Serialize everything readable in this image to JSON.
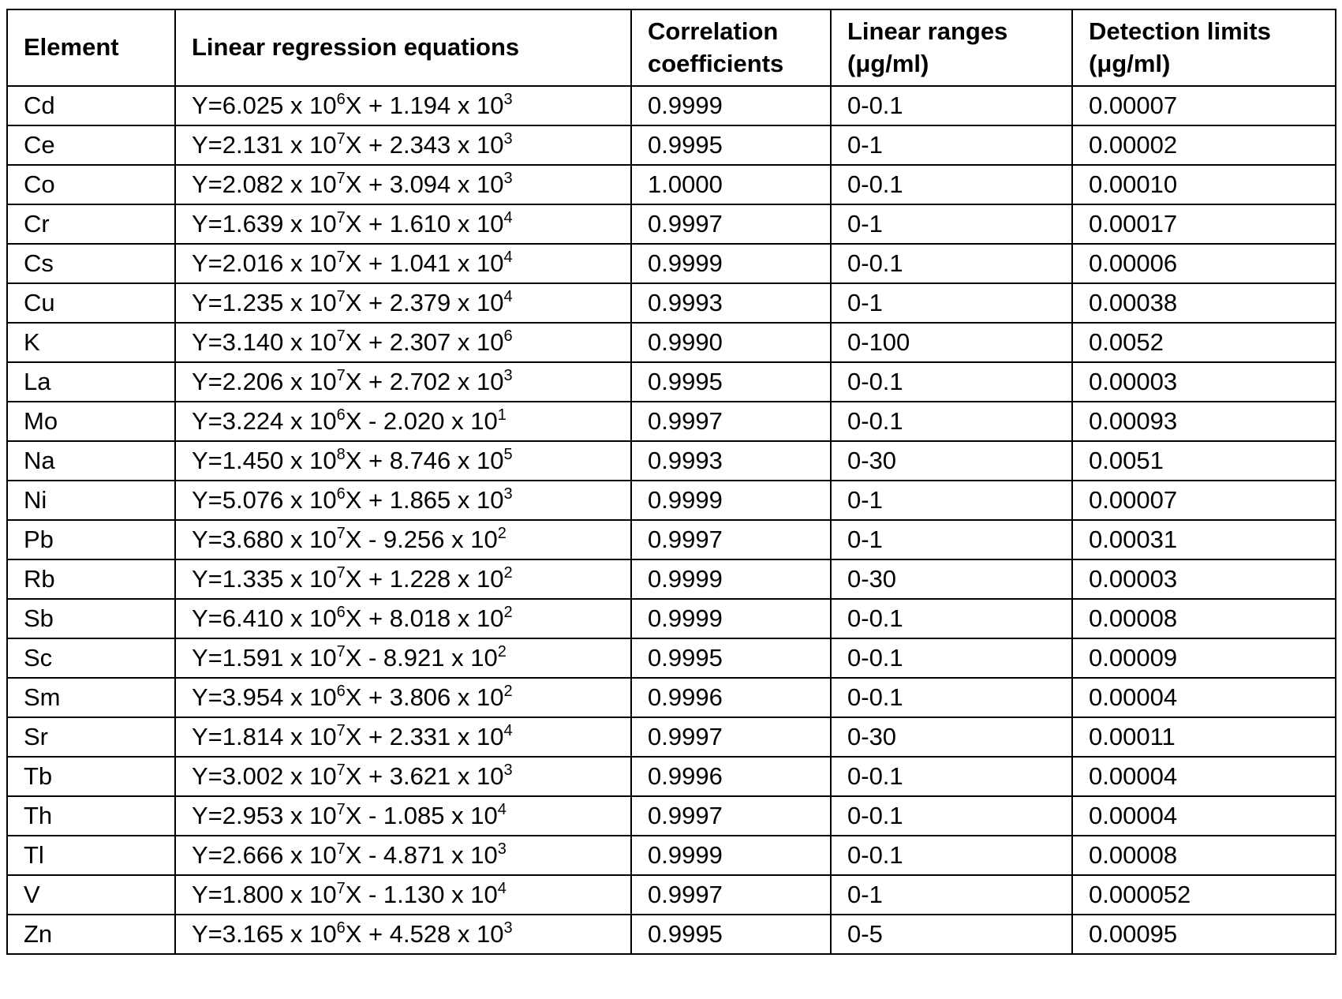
{
  "table": {
    "header": [
      "Element",
      "Linear regression equations",
      "Correlation coefficients",
      "Linear ranges (μg/ml)",
      "Detection limits (μg/ml)"
    ],
    "rows": [
      [
        "Cd",
        [
          "Y=6.025 x 10",
          "6",
          "X + 1.194 x 10",
          "3"
        ],
        "0.9999",
        "0-0.1",
        "0.00007"
      ],
      [
        "Ce",
        [
          "Y=2.131 x 10",
          "7",
          "X + 2.343 x 10",
          "3"
        ],
        "0.9995",
        "0-1",
        "0.00002"
      ],
      [
        "Co",
        [
          "Y=2.082 x 10",
          "7",
          "X + 3.094 x 10",
          "3"
        ],
        "1.0000",
        "0-0.1",
        "0.00010"
      ],
      [
        "Cr",
        [
          "Y=1.639 x 10",
          "7",
          "X + 1.610 x 10",
          "4"
        ],
        "0.9997",
        "0-1",
        "0.00017"
      ],
      [
        "Cs",
        [
          "Y=2.016 x 10",
          "7",
          "X + 1.041 x 10",
          "4"
        ],
        "0.9999",
        "0-0.1",
        "0.00006"
      ],
      [
        "Cu",
        [
          "Y=1.235 x 10",
          "7",
          "X + 2.379 x 10",
          "4"
        ],
        "0.9993",
        "0-1",
        "0.00038"
      ],
      [
        "K",
        [
          "Y=3.140 x 10",
          "7",
          "X + 2.307 x 10",
          "6"
        ],
        "0.9990",
        "0-100",
        "0.0052"
      ],
      [
        "La",
        [
          "Y=2.206 x 10",
          "7",
          "X + 2.702 x 10",
          "3"
        ],
        "0.9995",
        "0-0.1",
        "0.00003"
      ],
      [
        "Mo",
        [
          "Y=3.224 x 10",
          "6",
          "X - 2.020 x 10",
          "1"
        ],
        "0.9997",
        "0-0.1",
        "0.00093"
      ],
      [
        "Na",
        [
          "Y=1.450 x 10",
          "8",
          "X + 8.746 x 10",
          "5"
        ],
        "0.9993",
        "0-30",
        "0.0051"
      ],
      [
        "Ni",
        [
          "Y=5.076 x 10",
          "6",
          "X + 1.865 x 10",
          "3"
        ],
        "0.9999",
        "0-1",
        "0.00007"
      ],
      [
        "Pb",
        [
          "Y=3.680 x 10",
          "7",
          "X - 9.256 x 10",
          "2"
        ],
        "0.9997",
        "0-1",
        "0.00031"
      ],
      [
        "Rb",
        [
          "Y=1.335 x 10",
          "7",
          "X + 1.228 x 10",
          "2"
        ],
        "0.9999",
        "0-30",
        "0.00003"
      ],
      [
        "Sb",
        [
          "Y=6.410 x 10",
          "6",
          "X + 8.018 x 10",
          "2"
        ],
        "0.9999",
        "0-0.1",
        "0.00008"
      ],
      [
        "Sc",
        [
          "Y=1.591 x 10",
          "7",
          "X - 8.921 x 10",
          "2"
        ],
        "0.9995",
        "0-0.1",
        "0.00009"
      ],
      [
        "Sm",
        [
          "Y=3.954 x 10",
          "6",
          "X + 3.806 x 10",
          "2"
        ],
        "0.9996",
        "0-0.1",
        "0.00004"
      ],
      [
        "Sr",
        [
          "Y=1.814 x 10",
          "7",
          "X + 2.331 x 10",
          "4"
        ],
        "0.9997",
        "0-30",
        "0.00011"
      ],
      [
        "Tb",
        [
          "Y=3.002 x 10",
          "7",
          "X + 3.621 x 10",
          "3"
        ],
        "0.9996",
        "0-0.1",
        "0.00004"
      ],
      [
        "Th",
        [
          "Y=2.953 x 10",
          "7",
          "X - 1.085 x 10",
          "4"
        ],
        "0.9997",
        "0-0.1",
        "0.00004"
      ],
      [
        "Tl",
        [
          "Y=2.666 x 10",
          "7",
          "X - 4.871 x 10",
          "3"
        ],
        "0.9999",
        "0-0.1",
        "0.00008"
      ],
      [
        "V",
        [
          "Y=1.800 x 10",
          "7",
          "X - 1.130 x 10",
          "4"
        ],
        "0.9997",
        "0-1",
        "0.000052"
      ],
      [
        "Zn",
        [
          "Y=3.165 x 10",
          "6",
          "X + 4.528 x 10",
          "3"
        ],
        "0.9995",
        "0-5",
        "0.00095"
      ]
    ]
  }
}
